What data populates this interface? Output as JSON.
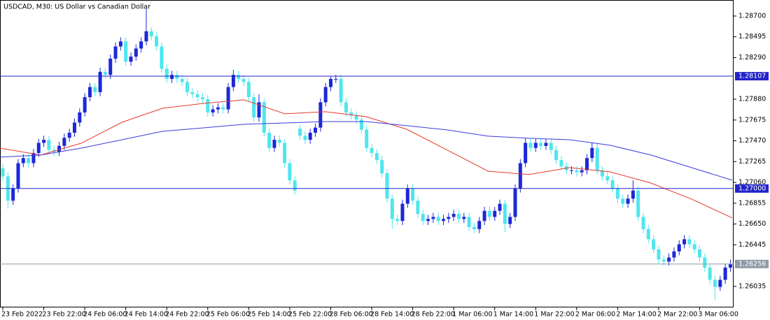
{
  "chart_data": {
    "type": "candlestick",
    "title": "USDCAD, M30:  US Dollar vs Canadian Dollar",
    "xticks": [
      "23 Feb 2022",
      "23 Feb 22:00",
      "24 Feb 06:00",
      "24 Feb 14:00",
      "24 Feb 22:00",
      "25 Feb 06:00",
      "25 Feb 14:00",
      "25 Feb 22:00",
      "28 Feb 06:00",
      "28 Feb 14:00",
      "28 Feb 22:00",
      "1 Mar 06:00",
      "1 Mar 14:00",
      "1 Mar 22:00",
      "2 Mar 06:00",
      "2 Mar 14:00",
      "2 Mar 22:00",
      "3 Mar 06:00"
    ],
    "open": [
      1.272,
      1.2712,
      1.2688,
      1.27,
      1.2725,
      1.273,
      1.2725,
      1.2735,
      1.2745,
      1.2748,
      1.2738,
      1.2736,
      1.2742,
      1.275,
      1.2755,
      1.2765,
      1.2775,
      1.279,
      1.28,
      1.2795,
      1.2815,
      1.2812,
      1.2828,
      1.284,
      1.2845,
      1.2825,
      1.283,
      1.2838,
      1.2845,
      1.2855,
      1.285,
      1.284,
      1.2818,
      1.2808,
      1.2812,
      1.2808,
      1.2805,
      1.2795,
      1.2793,
      1.279,
      1.2788,
      1.2775,
      1.2778,
      1.278,
      1.2778,
      1.28,
      1.2812,
      1.2808,
      1.2805,
      1.279,
      1.277,
      1.2785,
      1.2755,
      1.274,
      1.2748,
      1.2745,
      1.2725,
      1.2708,
      1.2759,
      1.2752,
      1.2748,
      1.2755,
      1.276,
      1.2785,
      1.28,
      1.2808,
      1.2808,
      1.2785,
      1.2775,
      1.2772,
      1.2768,
      1.2758,
      1.274,
      1.2735,
      1.2728,
      1.2715,
      1.269,
      1.267,
      1.2668,
      1.2685,
      1.27,
      1.2688,
      1.2675,
      1.2668,
      1.267,
      1.2672,
      1.2668,
      1.267,
      1.2672,
      1.2675,
      1.267,
      1.2672,
      1.2662,
      1.266,
      1.2668,
      1.2678,
      1.2672,
      1.2678,
      1.2685,
      1.2665,
      1.2672,
      1.27,
      1.2725,
      1.2745,
      1.274,
      1.2745,
      1.2742,
      1.2745,
      1.2738,
      1.2728,
      1.2722,
      1.2718,
      1.2718,
      1.2716,
      1.2718,
      1.273,
      1.274,
      1.2718,
      1.2712,
      1.2708,
      1.27,
      1.269,
      1.2685,
      1.269,
      1.2698,
      1.2672,
      1.266,
      1.265,
      1.264,
      1.263,
      1.2628,
      1.2632,
      1.2638,
      1.2645,
      1.265,
      1.2645,
      1.264,
      1.2632,
      1.2622,
      1.261,
      1.2603,
      1.261,
      1.2622
    ],
    "high": [
      1.2724,
      1.2716,
      1.2704,
      1.2729,
      1.2734,
      1.2734,
      1.2739,
      1.2749,
      1.2752,
      1.2752,
      1.2742,
      1.2746,
      1.2754,
      1.2759,
      1.2769,
      1.2779,
      1.2794,
      1.2804,
      1.2804,
      1.2819,
      1.2819,
      1.2832,
      1.2844,
      1.2849,
      1.2849,
      1.2834,
      1.2842,
      1.2849,
      1.2877,
      1.2859,
      1.2854,
      1.2844,
      1.2822,
      1.2816,
      1.2816,
      1.2812,
      1.2809,
      1.2799,
      1.2797,
      1.2794,
      1.2792,
      1.2782,
      1.2784,
      1.2784,
      1.2804,
      1.2817,
      1.2816,
      1.2812,
      1.2809,
      1.2794,
      1.2793,
      1.2789,
      1.2759,
      1.2752,
      1.2752,
      1.2749,
      1.2729,
      1.2712,
      1.2763,
      1.2756,
      1.2759,
      1.2764,
      1.2789,
      1.2804,
      1.2811,
      1.2812,
      1.2812,
      1.2789,
      1.2779,
      1.2776,
      1.2772,
      1.2762,
      1.2744,
      1.2739,
      1.2732,
      1.2719,
      1.2694,
      1.2674,
      1.2689,
      1.2704,
      1.2704,
      1.2692,
      1.2679,
      1.2674,
      1.2676,
      1.2676,
      1.2674,
      1.2676,
      1.2679,
      1.2679,
      1.2676,
      1.2676,
      1.2666,
      1.2672,
      1.2682,
      1.2682,
      1.2682,
      1.2689,
      1.2689,
      1.2676,
      1.2704,
      1.2729,
      1.275,
      1.2749,
      1.2749,
      1.2749,
      1.2749,
      1.2749,
      1.2742,
      1.2732,
      1.2726,
      1.2722,
      1.2722,
      1.2722,
      1.2734,
      1.2745,
      1.2744,
      1.2722,
      1.2716,
      1.2712,
      1.2704,
      1.2694,
      1.2694,
      1.2708,
      1.2702,
      1.2676,
      1.2664,
      1.2654,
      1.2644,
      1.2634,
      1.2636,
      1.2642,
      1.2649,
      1.2654,
      1.2654,
      1.2649,
      1.2644,
      1.2636,
      1.2626,
      1.2614,
      1.2614,
      1.2626,
      1.263
    ],
    "low": [
      1.2708,
      1.268,
      1.2684,
      1.2696,
      1.2721,
      1.2721,
      1.2721,
      1.2731,
      1.2741,
      1.2734,
      1.2732,
      1.2732,
      1.2738,
      1.2746,
      1.2751,
      1.2761,
      1.2771,
      1.2786,
      1.2791,
      1.2791,
      1.2808,
      1.2808,
      1.2824,
      1.2836,
      1.2821,
      1.2821,
      1.2826,
      1.2834,
      1.2841,
      1.2846,
      1.2836,
      1.2814,
      1.2804,
      1.2804,
      1.2804,
      1.2801,
      1.2791,
      1.2789,
      1.2786,
      1.2784,
      1.2771,
      1.2771,
      1.2774,
      1.2774,
      1.2774,
      1.2796,
      1.2804,
      1.2801,
      1.2786,
      1.2766,
      1.2766,
      1.2751,
      1.2736,
      1.2736,
      1.2741,
      1.2721,
      1.2704,
      1.2694,
      1.2748,
      1.2744,
      1.2744,
      1.2751,
      1.2756,
      1.2781,
      1.2796,
      1.2804,
      1.2781,
      1.2771,
      1.2768,
      1.2764,
      1.2754,
      1.2736,
      1.2731,
      1.2724,
      1.2711,
      1.2686,
      1.266,
      1.2664,
      1.2664,
      1.2681,
      1.2684,
      1.2671,
      1.2664,
      1.2664,
      1.2666,
      1.2664,
      1.2664,
      1.2666,
      1.2668,
      1.2666,
      1.2666,
      1.2658,
      1.2656,
      1.2656,
      1.2664,
      1.2668,
      1.2668,
      1.2674,
      1.2657,
      1.2661,
      1.2668,
      1.2696,
      1.2721,
      1.2736,
      1.2736,
      1.2738,
      1.2738,
      1.2734,
      1.2724,
      1.2718,
      1.2714,
      1.2714,
      1.2712,
      1.2712,
      1.2714,
      1.2726,
      1.2714,
      1.2708,
      1.2704,
      1.2696,
      1.2686,
      1.2681,
      1.2681,
      1.2686,
      1.2668,
      1.2656,
      1.2646,
      1.2636,
      1.2626,
      1.2624,
      1.2624,
      1.2628,
      1.2634,
      1.2641,
      1.2641,
      1.2636,
      1.2628,
      1.2618,
      1.2606,
      1.259,
      1.2599,
      1.2606,
      1.2618
    ],
    "close": [
      1.2712,
      1.2688,
      1.27,
      1.2725,
      1.273,
      1.2725,
      1.2735,
      1.2745,
      1.2748,
      1.2738,
      1.2736,
      1.2742,
      1.275,
      1.2755,
      1.2765,
      1.2775,
      1.279,
      1.28,
      1.2795,
      1.2815,
      1.2812,
      1.2828,
      1.284,
      1.2845,
      1.2825,
      1.283,
      1.2838,
      1.2845,
      1.2855,
      1.285,
      1.284,
      1.2818,
      1.2808,
      1.2812,
      1.2808,
      1.2805,
      1.2795,
      1.2793,
      1.279,
      1.2788,
      1.2775,
      1.2778,
      1.278,
      1.2778,
      1.28,
      1.2812,
      1.2808,
      1.2805,
      1.279,
      1.277,
      1.2785,
      1.2755,
      1.274,
      1.2748,
      1.2745,
      1.2725,
      1.2708,
      1.2698,
      1.2752,
      1.2748,
      1.2755,
      1.276,
      1.2785,
      1.28,
      1.2808,
      1.2808,
      1.2785,
      1.2775,
      1.2772,
      1.2768,
      1.2758,
      1.274,
      1.2735,
      1.2728,
      1.2715,
      1.269,
      1.267,
      1.2668,
      1.2685,
      1.27,
      1.2688,
      1.2675,
      1.2668,
      1.267,
      1.2672,
      1.2668,
      1.267,
      1.2672,
      1.2675,
      1.267,
      1.2672,
      1.2662,
      1.266,
      1.2668,
      1.2678,
      1.2672,
      1.2678,
      1.2685,
      1.2665,
      1.2672,
      1.27,
      1.2725,
      1.2745,
      1.274,
      1.2745,
      1.2742,
      1.2745,
      1.2738,
      1.2728,
      1.2722,
      1.2718,
      1.2718,
      1.2716,
      1.2718,
      1.273,
      1.274,
      1.2718,
      1.2712,
      1.2708,
      1.27,
      1.269,
      1.2685,
      1.269,
      1.2698,
      1.2672,
      1.266,
      1.265,
      1.264,
      1.263,
      1.2628,
      1.2632,
      1.2638,
      1.2645,
      1.265,
      1.2645,
      1.264,
      1.2632,
      1.2622,
      1.261,
      1.2603,
      1.261,
      1.2622,
      1.26256
    ],
    "up_color": "#1c28d8",
    "down_color": "#4fe6ee",
    "ylim": [
      1.25828,
      1.28858
    ],
    "yticks": [
      {
        "value": 1.287,
        "label": "1.28700"
      },
      {
        "value": 1.28495,
        "label": "1.28495"
      },
      {
        "value": 1.2829,
        "label": "1.28290"
      },
      {
        "value": 1.2788,
        "label": "1.27880"
      },
      {
        "value": 1.27675,
        "label": "1.27675"
      },
      {
        "value": 1.2747,
        "label": "1.27470"
      },
      {
        "value": 1.27265,
        "label": "1.27265"
      },
      {
        "value": 1.2706,
        "label": "1.27060"
      },
      {
        "value": 1.26855,
        "label": "1.26855"
      },
      {
        "value": 1.2665,
        "label": "1.26650"
      },
      {
        "value": 1.26445,
        "label": "1.26445"
      },
      {
        "value": 1.26035,
        "label": "1.26035"
      }
    ],
    "levels": [
      {
        "value": 1.28107,
        "color": "#2323c8"
      },
      {
        "value": {
          "value": 1.27,
          "label": "1.27000"
        },
        "color": "#2323c8"
      },
      {
        "value": 1.26256,
        "color": "#8e9ba6"
      }
    ],
    "series": [
      {
        "color": "#e63a2e",
        "values": [
          1.27398,
          1.2733,
          1.27447,
          1.27653,
          1.27791,
          1.27839,
          1.27874,
          1.27736,
          1.27757,
          1.27708,
          1.27584,
          1.27378,
          1.27171,
          1.27137,
          1.27206,
          1.27164,
          1.27054,
          1.26896,
          1.2671
        ]
      },
      {
        "color": "#3b3bdc",
        "values": [
          1.27309,
          1.2733,
          1.27398,
          1.27481,
          1.27564,
          1.27598,
          1.27633,
          1.27646,
          1.2766,
          1.2766,
          1.27619,
          1.27577,
          1.27516,
          1.27495,
          1.27481,
          1.27426,
          1.2733,
          1.27206,
          1.27082
        ]
      }
    ]
  }
}
